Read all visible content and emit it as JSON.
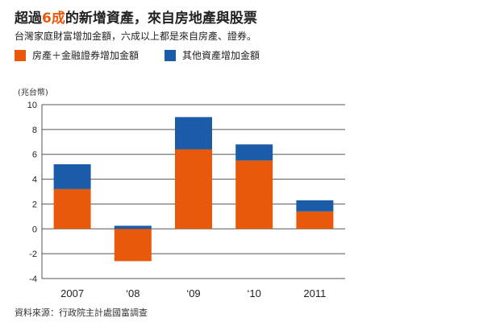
{
  "header": {
    "title_pre": "超過",
    "title_highlight": "6成",
    "title_post": "的新增資產，來自房地產與股票",
    "subtitle": "台灣家庭財富增加金額，六成以上都是來自房產、證券。"
  },
  "footer": {
    "source": "資料來源：行政院主計處國富調查"
  },
  "colors": {
    "orange": "#e8590c",
    "blue": "#1a5ca8",
    "highlight": "#e8590c"
  },
  "chart_data": {
    "type": "bar",
    "stacked": true,
    "unit_label": "(兆台幣)",
    "categories": [
      "2007",
      "‘08",
      "‘09",
      "‘10",
      "2011"
    ],
    "series": [
      {
        "name": "房產＋金融證券增加金額",
        "color": "#e8590c",
        "values": [
          3.2,
          -2.6,
          6.4,
          5.5,
          1.4
        ]
      },
      {
        "name": "其他資產增加金額",
        "color": "#1a5ca8",
        "values": [
          2.0,
          0.25,
          2.6,
          1.3,
          0.9
        ]
      }
    ],
    "ylim": [
      -4,
      10
    ],
    "yticks": [
      10,
      8,
      6,
      4,
      2,
      0,
      -2,
      -4
    ],
    "grid": true,
    "legend_position": "top-left"
  }
}
